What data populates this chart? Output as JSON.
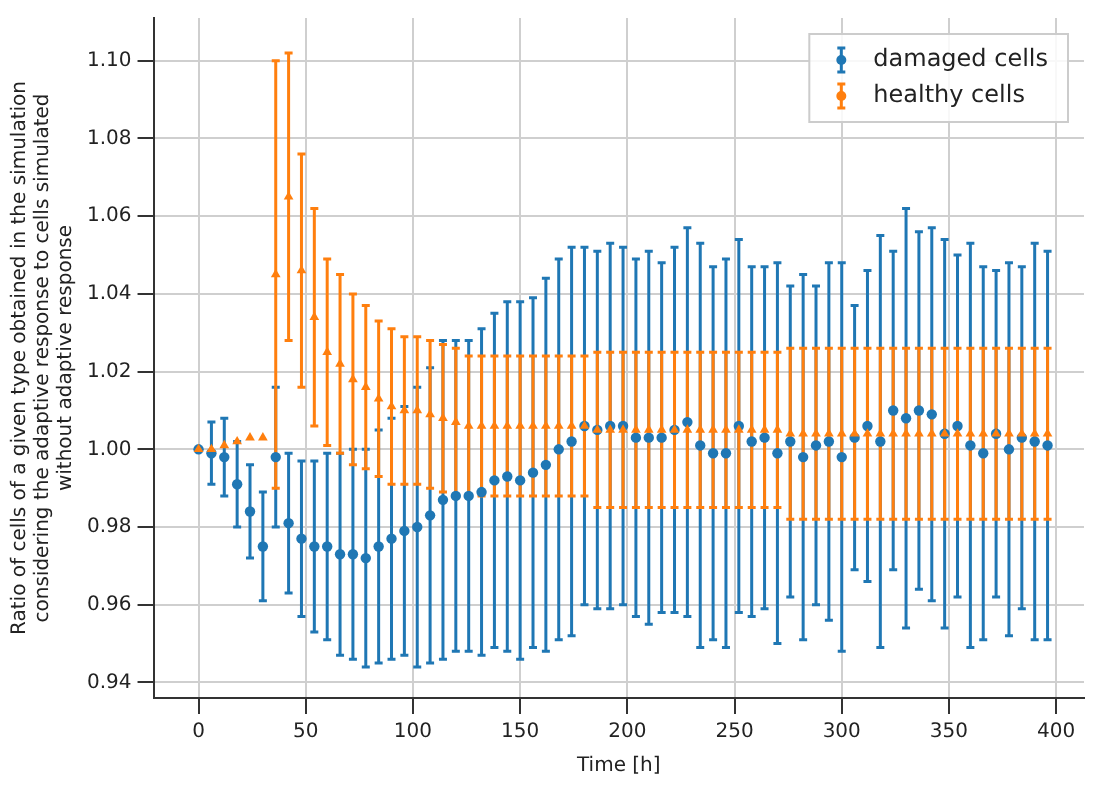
{
  "chart_data": {
    "type": "scatter",
    "xlabel": "Time [h]",
    "ylabel": "Ratio of cells of a given type obtained in the simulation\nconsidering the adaptive response to cells simulated\nwithout adaptive response",
    "x": [
      0,
      6,
      12,
      18,
      24,
      30,
      36,
      42,
      48,
      54,
      60,
      66,
      72,
      78,
      84,
      90,
      96,
      102,
      108,
      114,
      120,
      126,
      132,
      138,
      144,
      150,
      156,
      162,
      168,
      174,
      180,
      186,
      192,
      198,
      204,
      210,
      216,
      222,
      228,
      234,
      240,
      246,
      252,
      258,
      264,
      270,
      276,
      282,
      288,
      294,
      300,
      306,
      312,
      318,
      324,
      330,
      336,
      342,
      348,
      354,
      360,
      366,
      372,
      378,
      384,
      390,
      396
    ],
    "series": [
      {
        "name": "damaged cells",
        "color": "#1f77b4",
        "marker": "circle",
        "values": [
          1.0,
          0.999,
          0.998,
          0.991,
          0.984,
          0.975,
          0.998,
          0.981,
          0.977,
          0.975,
          0.975,
          0.973,
          0.973,
          0.972,
          0.975,
          0.977,
          0.979,
          0.98,
          0.983,
          0.987,
          0.988,
          0.988,
          0.989,
          0.992,
          0.993,
          0.992,
          0.994,
          0.996,
          1.0,
          1.002,
          1.006,
          1.005,
          1.006,
          1.006,
          1.003,
          1.003,
          1.003,
          1.005,
          1.007,
          1.001,
          0.999,
          0.999,
          1.006,
          1.002,
          1.003,
          0.999,
          1.002,
          0.998,
          1.001,
          1.002,
          0.998,
          1.003,
          1.006,
          1.002,
          1.01,
          1.008,
          1.01,
          1.009,
          1.004,
          1.006,
          1.001,
          0.999,
          1.004,
          1.0,
          1.003,
          1.002,
          1.001
        ],
        "errors": [
          null,
          0.008,
          0.01,
          0.011,
          0.012,
          0.014,
          0.018,
          0.018,
          0.02,
          0.022,
          0.024,
          0.026,
          0.027,
          0.028,
          0.03,
          0.031,
          0.032,
          0.036,
          0.038,
          0.041,
          0.04,
          0.04,
          0.042,
          0.043,
          0.045,
          0.046,
          0.045,
          0.048,
          0.049,
          0.05,
          0.046,
          0.046,
          0.047,
          0.046,
          0.046,
          0.048,
          0.045,
          0.047,
          0.05,
          0.052,
          0.048,
          0.05,
          0.048,
          0.045,
          0.044,
          0.049,
          0.04,
          0.047,
          0.041,
          0.046,
          0.05,
          0.034,
          0.04,
          0.053,
          0.041,
          0.054,
          0.046,
          0.048,
          0.05,
          0.044,
          0.052,
          0.048,
          0.042,
          0.048,
          0.044,
          0.051,
          0.05
        ]
      },
      {
        "name": "healthy cells",
        "color": "#ff7f0e",
        "marker": "triangle",
        "values": [
          1.0,
          1.0,
          1.001,
          1.002,
          1.003,
          1.003,
          1.045,
          1.065,
          1.046,
          1.034,
          1.025,
          1.022,
          1.018,
          1.016,
          1.013,
          1.011,
          1.01,
          1.01,
          1.009,
          1.008,
          1.007,
          1.006,
          1.006,
          1.006,
          1.006,
          1.006,
          1.006,
          1.006,
          1.006,
          1.006,
          1.006,
          1.005,
          1.005,
          1.005,
          1.005,
          1.005,
          1.005,
          1.005,
          1.005,
          1.005,
          1.005,
          1.005,
          1.005,
          1.005,
          1.005,
          1.005,
          1.004,
          1.004,
          1.004,
          1.004,
          1.004,
          1.004,
          1.004,
          1.004,
          1.004,
          1.004,
          1.004,
          1.004,
          1.004,
          1.004,
          1.004,
          1.004,
          1.004,
          1.004,
          1.004,
          1.004,
          1.004
        ],
        "errors": [
          null,
          null,
          null,
          null,
          null,
          null,
          0.055,
          0.037,
          0.03,
          0.028,
          0.024,
          0.023,
          0.022,
          0.021,
          0.02,
          0.02,
          0.019,
          0.019,
          0.019,
          0.019,
          0.019,
          0.018,
          0.018,
          0.018,
          0.018,
          0.018,
          0.018,
          0.018,
          0.018,
          0.018,
          0.018,
          0.02,
          0.02,
          0.02,
          0.02,
          0.02,
          0.02,
          0.02,
          0.02,
          0.02,
          0.02,
          0.02,
          0.02,
          0.02,
          0.02,
          0.02,
          0.022,
          0.022,
          0.022,
          0.022,
          0.022,
          0.022,
          0.022,
          0.022,
          0.022,
          0.022,
          0.022,
          0.022,
          0.022,
          0.022,
          0.022,
          0.022,
          0.022,
          0.022,
          0.022,
          0.022,
          0.022
        ]
      }
    ],
    "xlim": [
      -21,
      413
    ],
    "xticks": [
      0,
      50,
      100,
      150,
      200,
      250,
      300,
      350,
      400
    ],
    "ylim": [
      0.936,
      1.111
    ],
    "yticks": [
      {
        "value": 0.94,
        "label": "0.94"
      },
      {
        "value": 0.96,
        "label": "0.96"
      },
      {
        "value": 0.98,
        "label": "0.98"
      },
      {
        "value": 1.0,
        "label": "1.00"
      },
      {
        "value": 1.02,
        "label": "1.02"
      },
      {
        "value": 1.04,
        "label": "1.04"
      },
      {
        "value": 1.06,
        "label": "1.06"
      },
      {
        "value": 1.08,
        "label": "1.08"
      },
      {
        "value": 1.1,
        "label": "1.10"
      }
    ],
    "grid": true,
    "legend": "top right"
  }
}
